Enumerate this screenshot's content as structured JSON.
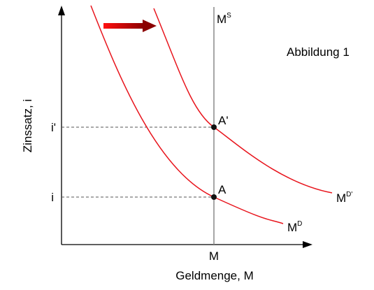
{
  "figure_label": "Abbildung 1",
  "x_axis": {
    "label": "Geldmenge, M",
    "tick": "M"
  },
  "y_axis": {
    "label": "Zinssatz, i",
    "ticks": [
      "i'",
      "i"
    ]
  },
  "curves": [
    {
      "base": "M",
      "sup": "S"
    },
    {
      "base": "M",
      "sup": "D'"
    },
    {
      "base": "M",
      "sup": "D"
    }
  ],
  "points": [
    "A'",
    "A"
  ]
}
